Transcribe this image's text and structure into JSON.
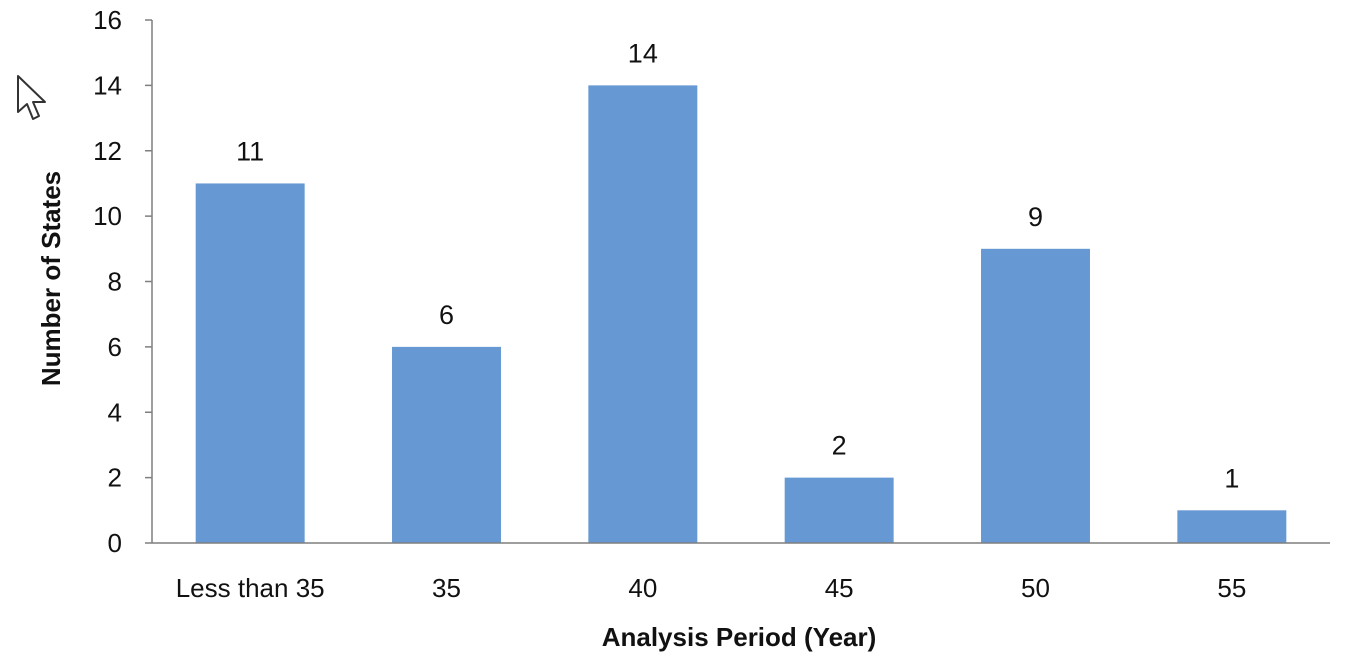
{
  "chart_data": {
    "type": "bar",
    "xlabel": "Analysis Period (Year)",
    "ylabel": "Number of States",
    "categories": [
      "Less than 35",
      "35",
      "40",
      "45",
      "50",
      "55"
    ],
    "values": [
      11,
      6,
      14,
      2,
      9,
      1
    ],
    "data_labels": [
      "11",
      "6",
      "14",
      "2",
      "9",
      "1"
    ],
    "ylim": [
      0,
      16
    ],
    "yticks": [
      0,
      2,
      4,
      6,
      8,
      10,
      12,
      14,
      16
    ],
    "grid": false,
    "legend": "none",
    "bar_color": "#6699d3"
  },
  "overlay": {
    "cursor_icon": "mouse-pointer-arrow-icon"
  }
}
